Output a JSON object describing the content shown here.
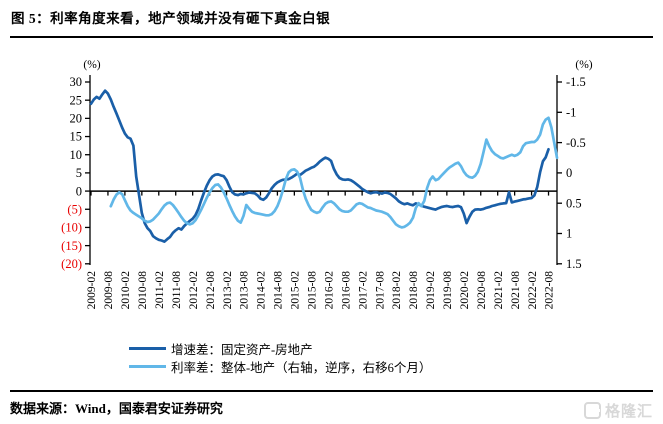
{
  "title": "图 5：利率角度来看，地产领域并没有砸下真金白银",
  "footer": {
    "source": "数据来源：Wind，国泰君安证券研究",
    "logo_text": "格隆汇"
  },
  "colors": {
    "series_dark": "#1a5fa8",
    "series_light": "#61b7e8",
    "negative_tick": "#e80000",
    "axis": "#000000"
  },
  "chart_data": {
    "type": "line",
    "left_axis": {
      "unit": "(%)",
      "min": -20,
      "max": 30,
      "ticks": [
        "30",
        "25",
        "20",
        "15",
        "10",
        "5",
        "0",
        "(5)",
        "(10)",
        "(15)",
        "(20)"
      ]
    },
    "right_axis": {
      "unit": "(%)",
      "min": -1.5,
      "max": 1.5,
      "inverted": true,
      "ticks": [
        "-1.5",
        "-1",
        "-0.5",
        "0",
        "0.5",
        "1",
        "1.5"
      ]
    },
    "x_labels": [
      "2009-02",
      "2009-08",
      "2010-02",
      "2010-08",
      "2011-02",
      "2011-08",
      "2012-02",
      "2012-08",
      "2013-02",
      "2013-08",
      "2014-02",
      "2014-08",
      "2015-02",
      "2015-08",
      "2016-02",
      "2016-08",
      "2017-02",
      "2017-08",
      "2018-02",
      "2018-08",
      "2019-02",
      "2019-08",
      "2020-02",
      "2020-08",
      "2021-02",
      "2021-08",
      "2022-02",
      "2022-08"
    ],
    "months_per_label": 6,
    "total_months": 166,
    "grid": "zero-line-only",
    "legend_position": "bottom",
    "series": [
      {
        "name": "增速差：固定资产-房地产",
        "axis": "left",
        "color": "#1a5fa8",
        "start_month_index": 0,
        "start_label": "2009-02",
        "values": [
          24.0,
          25.2,
          25.9,
          25.4,
          26.6,
          27.6,
          26.8,
          25.2,
          23.2,
          21.4,
          19.5,
          17.5,
          15.8,
          14.8,
          14.4,
          12.5,
          4.0,
          -1.0,
          -6.0,
          -8.8,
          -10.2,
          -11.0,
          -12.4,
          -13.0,
          -13.4,
          -13.6,
          -13.9,
          -13.2,
          -12.6,
          -11.5,
          -10.8,
          -10.2,
          -10.6,
          -9.6,
          -8.9,
          -8.2,
          -7.6,
          -6.6,
          -4.9,
          -2.6,
          -0.4,
          1.5,
          3.0,
          4.0,
          4.5,
          4.6,
          4.3,
          4.1,
          3.0,
          1.2,
          -0.3,
          -0.9,
          -1.1,
          -0.8,
          -0.9,
          -0.6,
          -0.4,
          -0.5,
          -0.6,
          -1.2,
          -2.1,
          -2.4,
          -1.8,
          -0.6,
          0.8,
          1.7,
          2.4,
          2.8,
          3.1,
          3.2,
          3.3,
          3.7,
          4.2,
          4.8,
          4.4,
          5.0,
          5.6,
          6.0,
          6.4,
          6.7,
          7.3,
          8.1,
          8.7,
          9.2,
          8.9,
          8.3,
          6.1,
          4.6,
          3.6,
          3.2,
          3.1,
          3.2,
          3.0,
          2.5,
          1.9,
          1.3,
          0.6,
          0.1,
          -0.3,
          -0.6,
          -0.4,
          -0.3,
          -0.5,
          -0.7,
          -0.4,
          -0.5,
          -0.8,
          -1.4,
          -2.0,
          -2.8,
          -3.3,
          -3.6,
          -3.4,
          -3.7,
          -3.9,
          -3.4,
          -3.7,
          -4.0,
          -4.3,
          -4.5,
          -4.7,
          -4.9,
          -5.1,
          -4.7,
          -4.4,
          -4.2,
          -4.1,
          -4.3,
          -4.4,
          -4.2,
          -4.1,
          -4.4,
          -6.2,
          -8.8,
          -7.1,
          -5.7,
          -5.1,
          -5.0,
          -5.1,
          -4.9,
          -4.6,
          -4.4,
          -4.1,
          -3.9,
          -3.7,
          -3.5,
          -3.4,
          -3.3,
          -0.3,
          -3.1,
          -2.9,
          -2.7,
          -2.5,
          -2.3,
          -2.2,
          -2.0,
          -1.9,
          -1.2,
          1.1,
          5.2,
          8.2,
          9.3,
          11.5
        ]
      },
      {
        "name": "利率差：整体-地产（右轴，逆序，右移6个月）",
        "axis": "right",
        "color": "#61b7e8",
        "start_month_index": 7,
        "start_label": "2009-09",
        "values": [
          0.55,
          0.44,
          0.36,
          0.32,
          0.35,
          0.45,
          0.55,
          0.62,
          0.66,
          0.69,
          0.72,
          0.75,
          0.79,
          0.81,
          0.8,
          0.77,
          0.72,
          0.67,
          0.6,
          0.54,
          0.5,
          0.49,
          0.53,
          0.59,
          0.66,
          0.73,
          0.79,
          0.83,
          0.85,
          0.83,
          0.78,
          0.7,
          0.61,
          0.51,
          0.41,
          0.32,
          0.25,
          0.2,
          0.19,
          0.24,
          0.32,
          0.42,
          0.53,
          0.63,
          0.72,
          0.79,
          0.82,
          0.71,
          0.53,
          0.59,
          0.64,
          0.66,
          0.67,
          0.68,
          0.69,
          0.7,
          0.7,
          0.68,
          0.63,
          0.55,
          0.43,
          0.28,
          0.1,
          -0.01,
          -0.05,
          -0.06,
          -0.02,
          0.08,
          0.27,
          0.42,
          0.53,
          0.61,
          0.64,
          0.66,
          0.64,
          0.57,
          0.51,
          0.48,
          0.47,
          0.5,
          0.55,
          0.6,
          0.63,
          0.64,
          0.64,
          0.62,
          0.57,
          0.52,
          0.5,
          0.51,
          0.54,
          0.57,
          0.58,
          0.6,
          0.62,
          0.63,
          0.64,
          0.66,
          0.68,
          0.73,
          0.79,
          0.85,
          0.88,
          0.9,
          0.89,
          0.86,
          0.82,
          0.74,
          0.58,
          0.5,
          0.55,
          0.46,
          0.25,
          0.12,
          0.06,
          0.12,
          0.1,
          0.05,
          0.0,
          -0.05,
          -0.09,
          -0.12,
          -0.15,
          -0.17,
          -0.11,
          -0.02,
          0.04,
          0.07,
          0.08,
          0.05,
          -0.02,
          -0.15,
          -0.35,
          -0.55,
          -0.44,
          -0.36,
          -0.31,
          -0.28,
          -0.25,
          -0.24,
          -0.26,
          -0.28,
          -0.3,
          -0.28,
          -0.3,
          -0.34,
          -0.44,
          -0.49,
          -0.5,
          -0.51,
          -0.51,
          -0.55,
          -0.63,
          -0.8,
          -0.88,
          -0.91,
          -0.75,
          -0.5,
          -0.25
        ]
      }
    ]
  }
}
